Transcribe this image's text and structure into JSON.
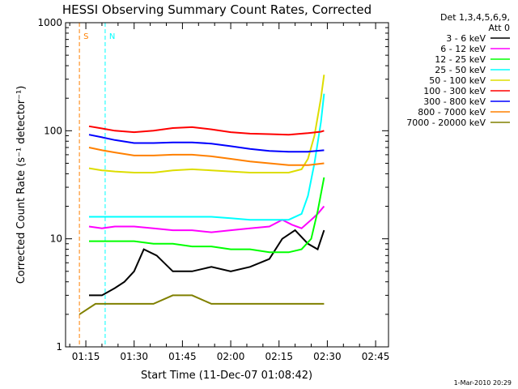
{
  "chart_data": {
    "type": "line",
    "title": "HESSI Observing Summary Count Rates, Corrected",
    "xlabel": "Start Time (11-Dec-07 01:08:42)",
    "ylabel": "Corrected Count Rate (s⁻¹ detector⁻¹)",
    "yscale": "log",
    "ylim": [
      1,
      1000
    ],
    "xlim": [
      "01:08:42",
      "02:49:00"
    ],
    "x_ticks": [
      "01:15",
      "01:30",
      "01:45",
      "02:00",
      "02:15",
      "02:30",
      "02:45"
    ],
    "y_ticks": [
      "1",
      "10",
      "100",
      "1000"
    ],
    "legend_header": [
      "Det 1,3,4,5,6,9,",
      "Att 0"
    ],
    "legend_position": "right",
    "series": [
      {
        "name": "3 - 6 keV",
        "color": "#000000",
        "x": [
          "01:16",
          "01:20",
          "01:24",
          "01:27",
          "01:30",
          "01:33",
          "01:37",
          "01:42",
          "01:48",
          "01:54",
          "02:00",
          "02:06",
          "02:12",
          "02:16",
          "02:20",
          "02:24",
          "02:27",
          "02:29"
        ],
        "y": [
          3,
          3,
          3.5,
          4,
          5,
          8,
          7,
          5,
          5,
          5.5,
          5,
          5.5,
          6.5,
          10,
          12,
          9,
          8,
          12
        ]
      },
      {
        "name": "6 - 12 keV",
        "color": "#ff00ff",
        "x": [
          "01:16",
          "01:20",
          "01:24",
          "01:30",
          "01:36",
          "01:42",
          "01:48",
          "01:54",
          "02:00",
          "02:06",
          "02:12",
          "02:16",
          "02:19",
          "02:22",
          "02:25",
          "02:27",
          "02:29"
        ],
        "y": [
          13,
          12.5,
          13,
          13,
          12.5,
          12,
          12,
          11.5,
          12,
          12.5,
          13,
          15,
          13.5,
          12.5,
          15,
          17,
          20
        ]
      },
      {
        "name": "12 - 25 keV",
        "color": "#00ff00",
        "x": [
          "01:16",
          "01:20",
          "01:24",
          "01:30",
          "01:36",
          "01:42",
          "01:48",
          "01:54",
          "02:00",
          "02:06",
          "02:12",
          "02:18",
          "02:22",
          "02:25",
          "02:27",
          "02:29"
        ],
        "y": [
          9.5,
          9.5,
          9.5,
          9.5,
          9,
          9,
          8.5,
          8.5,
          8,
          8,
          7.5,
          7.5,
          8,
          10,
          18,
          37
        ]
      },
      {
        "name": "25 - 50 keV",
        "color": "#00ffff",
        "x": [
          "01:16",
          "01:20",
          "01:24",
          "01:30",
          "01:36",
          "01:42",
          "01:48",
          "01:54",
          "02:00",
          "02:06",
          "02:12",
          "02:18",
          "02:22",
          "02:24",
          "02:26",
          "02:28",
          "02:29"
        ],
        "y": [
          16,
          16,
          16,
          16,
          16,
          16,
          16,
          16,
          15.5,
          15,
          15,
          15,
          17,
          25,
          50,
          120,
          220
        ]
      },
      {
        "name": "50 - 100 keV",
        "color": "#dddd00",
        "x": [
          "01:16",
          "01:20",
          "01:24",
          "01:30",
          "01:36",
          "01:42",
          "01:48",
          "01:54",
          "02:00",
          "02:06",
          "02:12",
          "02:18",
          "02:22",
          "02:24",
          "02:26",
          "02:28",
          "02:29"
        ],
        "y": [
          45,
          43,
          42,
          41,
          41,
          43,
          44,
          43,
          42,
          41,
          41,
          41,
          44,
          55,
          90,
          200,
          330
        ]
      },
      {
        "name": "100 - 300 keV",
        "color": "#ff0000",
        "x": [
          "01:16",
          "01:20",
          "01:24",
          "01:30",
          "01:36",
          "01:42",
          "01:48",
          "01:54",
          "02:00",
          "02:06",
          "02:12",
          "02:18",
          "02:24",
          "02:28",
          "02:29"
        ],
        "y": [
          110,
          105,
          100,
          97,
          100,
          106,
          108,
          103,
          97,
          94,
          93,
          92,
          95,
          98,
          100
        ]
      },
      {
        "name": "300 - 800 keV",
        "color": "#0000ff",
        "x": [
          "01:16",
          "01:20",
          "01:24",
          "01:30",
          "01:36",
          "01:42",
          "01:48",
          "01:54",
          "02:00",
          "02:06",
          "02:12",
          "02:18",
          "02:24",
          "02:29"
        ],
        "y": [
          92,
          87,
          82,
          77,
          77,
          78,
          78,
          76,
          72,
          68,
          65,
          64,
          64,
          66
        ]
      },
      {
        "name": "800 - 7000 keV",
        "color": "#ff8000",
        "x": [
          "01:16",
          "01:20",
          "01:24",
          "01:30",
          "01:36",
          "01:42",
          "01:48",
          "01:54",
          "02:00",
          "02:06",
          "02:12",
          "02:18",
          "02:24",
          "02:29"
        ],
        "y": [
          70,
          66,
          63,
          59,
          59,
          60,
          60,
          58,
          55,
          52,
          50,
          48,
          48,
          50
        ]
      },
      {
        "name": "7000 - 20000 keV",
        "color": "#808000",
        "x": [
          "01:13",
          "01:18",
          "01:24",
          "01:30",
          "01:36",
          "01:42",
          "01:48",
          "01:54",
          "02:00",
          "02:06",
          "02:12",
          "02:18",
          "02:24",
          "02:29"
        ],
        "y": [
          2,
          2.5,
          2.5,
          2.5,
          2.5,
          3,
          3,
          2.5,
          2.5,
          2.5,
          2.5,
          2.5,
          2.5,
          2.5
        ]
      }
    ],
    "markers": [
      {
        "label": "S",
        "time": "01:13",
        "color": "#ff8000",
        "style": "dashed"
      },
      {
        "label": "N",
        "time": "01:21",
        "color": "#00ffff",
        "style": "dashed"
      }
    ],
    "grid": false
  },
  "footer_date": "1-Mar-2010 20:29"
}
